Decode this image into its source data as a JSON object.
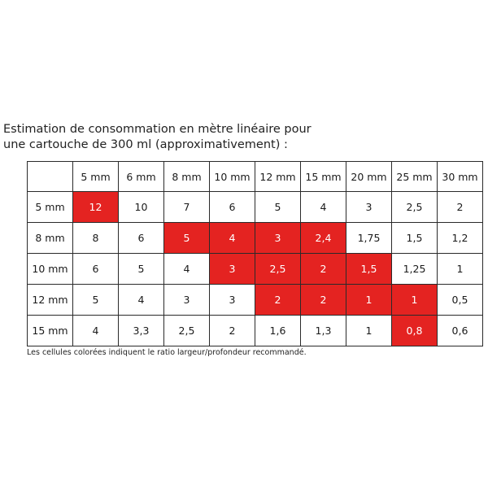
{
  "title": {
    "line1": "Estimation de consommation en mètre linéaire pour",
    "line2": "une cartouche de 300 ml (approximativement) :"
  },
  "colors": {
    "highlight": "#e42321",
    "border": "#2a2a2a"
  },
  "table": {
    "columns": [
      "5 mm",
      "6 mm",
      "8 mm",
      "10 mm",
      "12 mm",
      "15 mm",
      "20 mm",
      "25 mm",
      "30 mm"
    ],
    "rows": [
      {
        "label": "5 mm",
        "cells": [
          {
            "v": "12",
            "hl": true
          },
          {
            "v": "10",
            "hl": false
          },
          {
            "v": "7",
            "hl": false
          },
          {
            "v": "6",
            "hl": false
          },
          {
            "v": "5",
            "hl": false
          },
          {
            "v": "4",
            "hl": false
          },
          {
            "v": "3",
            "hl": false
          },
          {
            "v": "2,5",
            "hl": false
          },
          {
            "v": "2",
            "hl": false
          }
        ]
      },
      {
        "label": "8 mm",
        "cells": [
          {
            "v": "8",
            "hl": false
          },
          {
            "v": "6",
            "hl": false
          },
          {
            "v": "5",
            "hl": true
          },
          {
            "v": "4",
            "hl": true
          },
          {
            "v": "3",
            "hl": true
          },
          {
            "v": "2,4",
            "hl": true
          },
          {
            "v": "1,75",
            "hl": false
          },
          {
            "v": "1,5",
            "hl": false
          },
          {
            "v": "1,2",
            "hl": false
          }
        ]
      },
      {
        "label": "10 mm",
        "cells": [
          {
            "v": "6",
            "hl": false
          },
          {
            "v": "5",
            "hl": false
          },
          {
            "v": "4",
            "hl": false
          },
          {
            "v": "3",
            "hl": true
          },
          {
            "v": "2,5",
            "hl": true
          },
          {
            "v": "2",
            "hl": true
          },
          {
            "v": "1,5",
            "hl": true
          },
          {
            "v": "1,25",
            "hl": false
          },
          {
            "v": "1",
            "hl": false
          }
        ]
      },
      {
        "label": "12 mm",
        "cells": [
          {
            "v": "5",
            "hl": false
          },
          {
            "v": "4",
            "hl": false
          },
          {
            "v": "3",
            "hl": false
          },
          {
            "v": "3",
            "hl": false
          },
          {
            "v": "2",
            "hl": true
          },
          {
            "v": "2",
            "hl": true
          },
          {
            "v": "1",
            "hl": true
          },
          {
            "v": "1",
            "hl": true
          },
          {
            "v": "0,5",
            "hl": false
          }
        ]
      },
      {
        "label": "15 mm",
        "cells": [
          {
            "v": "4",
            "hl": false
          },
          {
            "v": "3,3",
            "hl": false
          },
          {
            "v": "2,5",
            "hl": false
          },
          {
            "v": "2",
            "hl": false
          },
          {
            "v": "1,6",
            "hl": false
          },
          {
            "v": "1,3",
            "hl": false
          },
          {
            "v": "1",
            "hl": false
          },
          {
            "v": "0,8",
            "hl": true
          },
          {
            "v": "0,6",
            "hl": false
          }
        ]
      }
    ]
  },
  "note": "Les cellules colorées indiquent le ratio largeur/profondeur recommandé."
}
